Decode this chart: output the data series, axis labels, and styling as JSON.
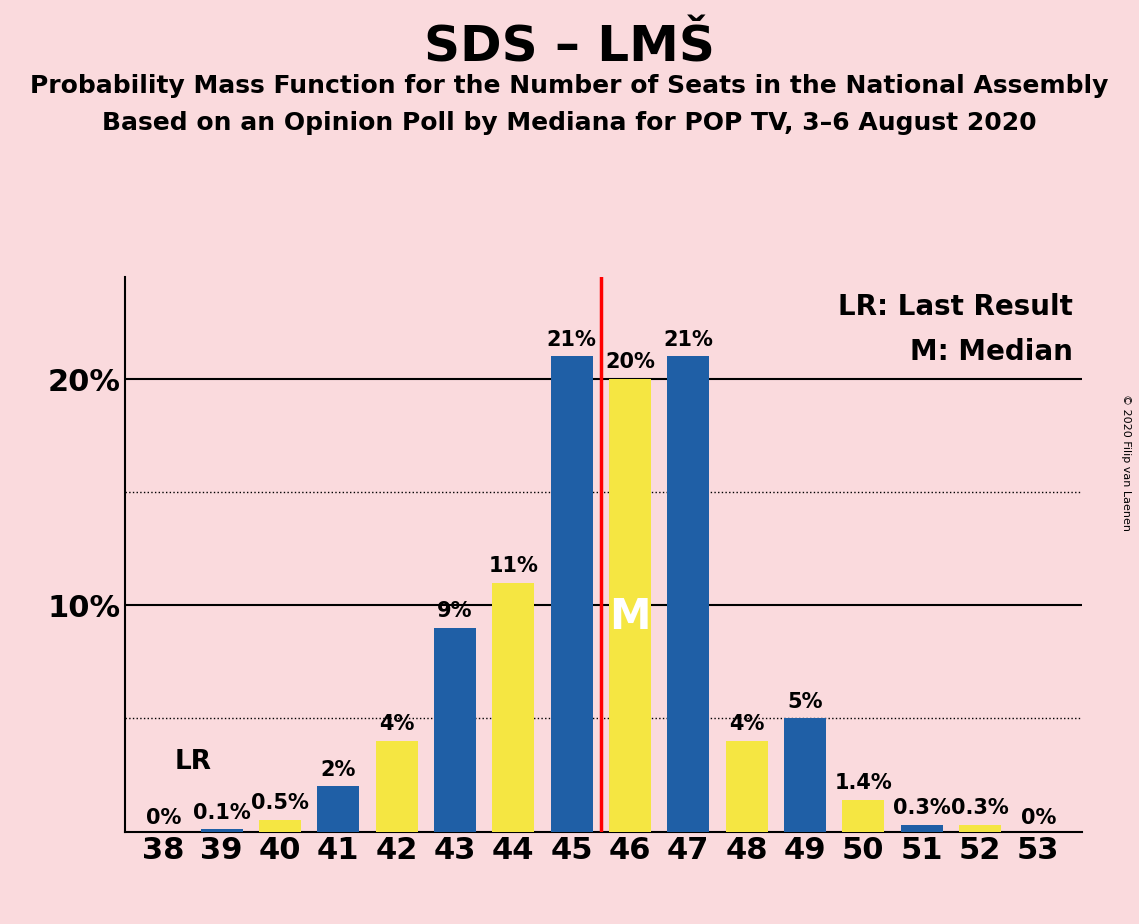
{
  "title": "SDS – LMŠ",
  "subtitle1": "Probability Mass Function for the Number of Seats in the National Assembly",
  "subtitle2": "Based on an Opinion Poll by Mediana for POP TV, 3–6 August 2020",
  "copyright": "© 2020 Filip van Laenen",
  "seats": [
    38,
    39,
    40,
    41,
    42,
    43,
    44,
    45,
    46,
    47,
    48,
    49,
    50,
    51,
    52,
    53
  ],
  "blue_values": [
    0.0,
    0.001,
    0.0,
    0.02,
    0.0,
    0.09,
    0.0,
    0.21,
    0.0,
    0.21,
    0.0,
    0.05,
    0.0,
    0.003,
    0.003,
    0.0
  ],
  "yellow_values": [
    0.0,
    0.0,
    0.005,
    0.0,
    0.04,
    0.0,
    0.11,
    0.0,
    0.2,
    0.0,
    0.04,
    0.0,
    0.014,
    0.0,
    0.003,
    0.0
  ],
  "blue_labels": [
    "",
    "0.1%",
    "",
    "2%",
    "",
    "9%",
    "",
    "21%",
    "",
    "21%",
    "",
    "5%",
    "",
    "0.3%",
    "0.3%",
    ""
  ],
  "yellow_labels": [
    "0%",
    "",
    "0.5%",
    "",
    "4%",
    "",
    "11%",
    "",
    "20%",
    "",
    "4%",
    "",
    "1.4%",
    "",
    "",
    "0%"
  ],
  "bar_color_blue": "#1F5FA6",
  "bar_color_yellow": "#F5E642",
  "background_color": "#FADADD",
  "vline_x": 45.5,
  "legend_lr": "LR: Last Result",
  "legend_m": "M: Median",
  "lr_label": "LR",
  "m_label": "M",
  "ylim": [
    0,
    0.245
  ],
  "yticks": [
    0.1,
    0.2
  ],
  "ytick_labels": [
    "10%",
    "20%"
  ],
  "dotted_yticks": [
    0.05,
    0.15
  ],
  "title_fontsize": 36,
  "subtitle_fontsize": 18,
  "axis_label_fontsize": 22,
  "bar_label_fontsize": 15,
  "legend_fontsize": 20
}
